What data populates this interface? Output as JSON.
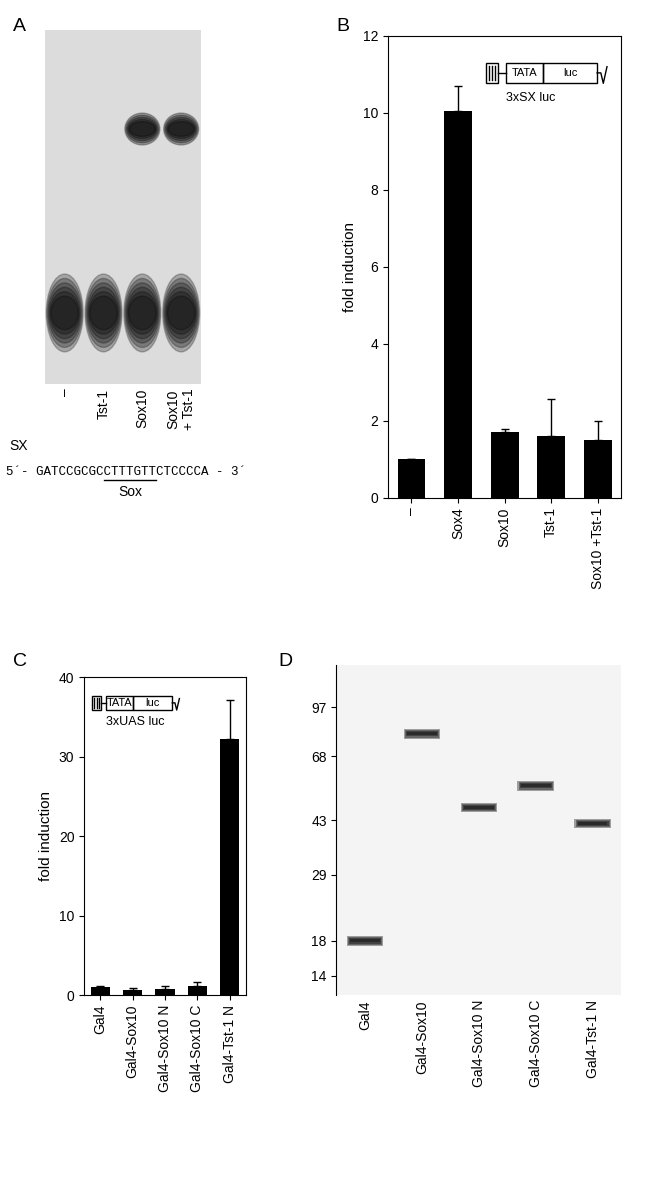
{
  "panel_labels": [
    "A",
    "B",
    "C",
    "D"
  ],
  "emsa": {
    "lanes": [
      "–",
      "Tst-1",
      "Sox10",
      "Sox10\n+ Tst-1"
    ],
    "shifted_complex": [
      false,
      false,
      true,
      true
    ],
    "free_probe": [
      true,
      true,
      true,
      true
    ],
    "probe": {
      "name": "SX",
      "sequence": "5´- GATCCGCGCCTTTGTTCTCCCCA - 3´",
      "site": "CTTTGTT",
      "site_label": "Sox"
    }
  },
  "chart_data": [
    {
      "type": "bar",
      "categories": [
        "–",
        "Sox4",
        "Sox10",
        "Tst-1",
        "Sox10 +Tst-1"
      ],
      "values": [
        1,
        10.05,
        1.7,
        1.6,
        1.5
      ],
      "errors": [
        0,
        0.65,
        0.08,
        0.95,
        0.5
      ],
      "color": "#000000",
      "ylabel": "fold induction",
      "ylim": [
        0,
        12
      ],
      "yticks": [
        0,
        2,
        4,
        6,
        8,
        10,
        12
      ],
      "annotations": {
        "construct": "3xSX luc",
        "promoter": "TATA",
        "reporter": "luc"
      }
    },
    {
      "type": "bar",
      "categories": [
        "Gal4",
        "Gal4-Sox10",
        "Gal4-Sox10 N",
        "Gal4-Sox10 C",
        "Gal4-Tst-1 N"
      ],
      "values": [
        1,
        0.6,
        0.8,
        1.2,
        32.2
      ],
      "errors": [
        0.1,
        0.3,
        0.3,
        0.4,
        5.0
      ],
      "color": "#000000",
      "ylabel": "fold induction",
      "ylim": [
        0,
        40
      ],
      "yticks": [
        0,
        10,
        20,
        30,
        40
      ],
      "annotations": {
        "construct": "3xUAS luc",
        "promoter": "TATA",
        "reporter": "luc"
      }
    }
  ],
  "western": {
    "lanes": [
      "Gal4",
      "Gal4-Sox10",
      "Gal4-Sox10 N",
      "Gal4-Sox10 C",
      "Gal4-Tst-1 N"
    ],
    "markers_kda": [
      97,
      68,
      43,
      29,
      18,
      14
    ],
    "band_kda": [
      18,
      80,
      47,
      55,
      42
    ]
  }
}
